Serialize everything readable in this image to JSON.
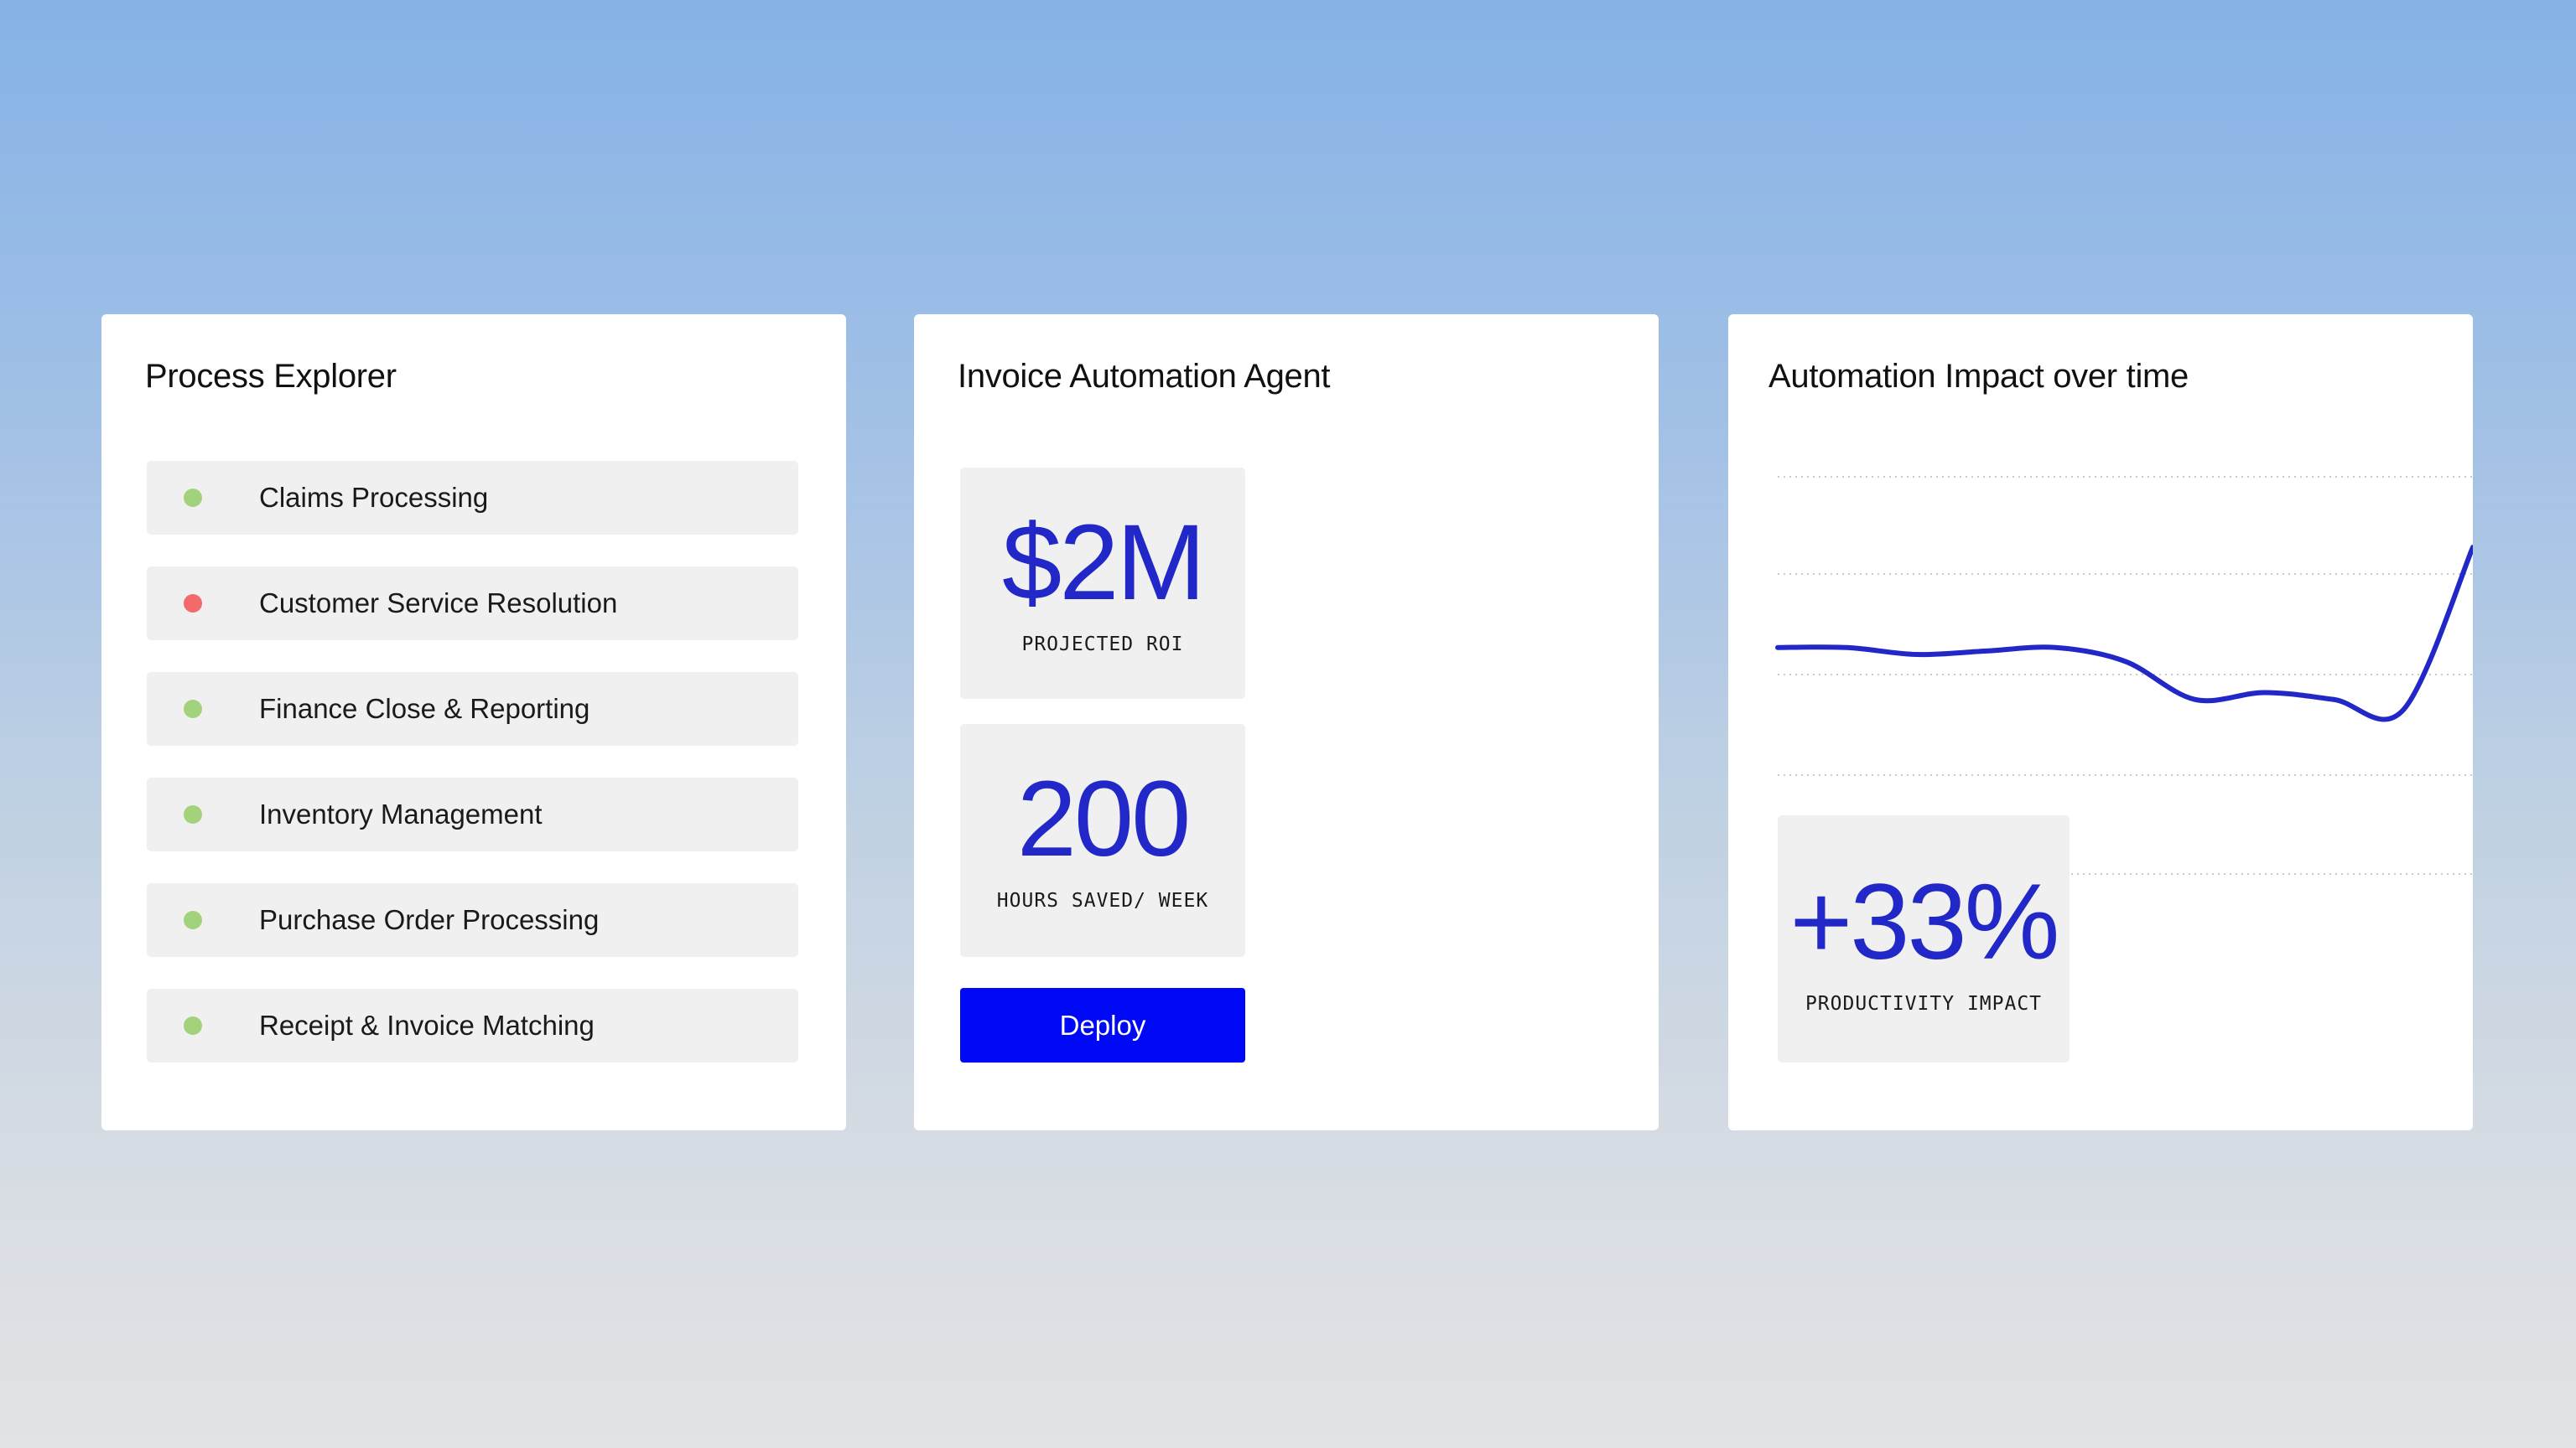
{
  "colors": {
    "accent": "#2128c7",
    "button": "#0009f5",
    "status_ok": "#a3d27c",
    "status_error": "#f26a6a",
    "item_bg": "#f0f0f0"
  },
  "process_explorer": {
    "title": "Process Explorer",
    "items": [
      {
        "label": "Claims Processing",
        "status": "ok"
      },
      {
        "label": "Customer Service Resolution",
        "status": "error"
      },
      {
        "label": "Finance Close & Reporting",
        "status": "ok"
      },
      {
        "label": "Inventory Management",
        "status": "ok"
      },
      {
        "label": "Purchase Order Processing",
        "status": "ok"
      },
      {
        "label": "Receipt & Invoice Matching",
        "status": "ok"
      }
    ]
  },
  "agent": {
    "title": "Invoice Automation Agent",
    "roi": {
      "value": "$2M",
      "label": "PROJECTED ROI"
    },
    "hours": {
      "value": "200",
      "label": "HOURS SAVED/ WEEK"
    },
    "deploy_label": "Deploy"
  },
  "impact": {
    "title": "Automation Impact over time",
    "metric": {
      "value": "+33%",
      "label": "PRODUCTIVITY IMPACT"
    }
  },
  "chart_data": {
    "type": "line",
    "title": "Automation Impact over time",
    "xlabel": "",
    "ylabel": "",
    "grid": true,
    "gridlines": 5,
    "ylim": [
      0,
      100
    ],
    "x": [
      0,
      10,
      20,
      30,
      40,
      50,
      60,
      70,
      80,
      90,
      100
    ],
    "series": [
      {
        "values": [
          71,
          71,
          69,
          70,
          71,
          67,
          56,
          58,
          56,
          53,
          100
        ]
      }
    ]
  }
}
